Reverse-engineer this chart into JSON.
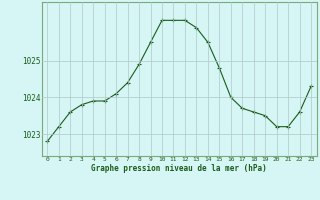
{
  "x": [
    0,
    1,
    2,
    3,
    4,
    5,
    6,
    7,
    8,
    9,
    10,
    11,
    12,
    13,
    14,
    15,
    16,
    17,
    18,
    19,
    20,
    21,
    22,
    23
  ],
  "y": [
    1022.8,
    1023.2,
    1023.6,
    1023.8,
    1023.9,
    1023.9,
    1024.1,
    1024.4,
    1024.9,
    1025.5,
    1026.1,
    1026.1,
    1026.1,
    1025.9,
    1025.5,
    1024.8,
    1024.0,
    1023.7,
    1023.6,
    1023.5,
    1023.2,
    1023.2,
    1023.6,
    1024.3
  ],
  "line_color": "#1a5c1a",
  "marker": "+",
  "marker_color": "#1a5c1a",
  "bg_color": "#d6f5f5",
  "grid_color": "#b0c8c8",
  "xlabel": "Graphe pression niveau de la mer (hPa)",
  "xlabel_color": "#1a5c1a",
  "tick_color": "#1a5c1a",
  "yticks": [
    1023,
    1024,
    1025
  ],
  "ylim": [
    1022.4,
    1026.6
  ],
  "xlim": [
    -0.5,
    23.5
  ],
  "xticks": [
    0,
    1,
    2,
    3,
    4,
    5,
    6,
    7,
    8,
    9,
    10,
    11,
    12,
    13,
    14,
    15,
    16,
    17,
    18,
    19,
    20,
    21,
    22,
    23
  ],
  "border_color": "#7aaa7a"
}
